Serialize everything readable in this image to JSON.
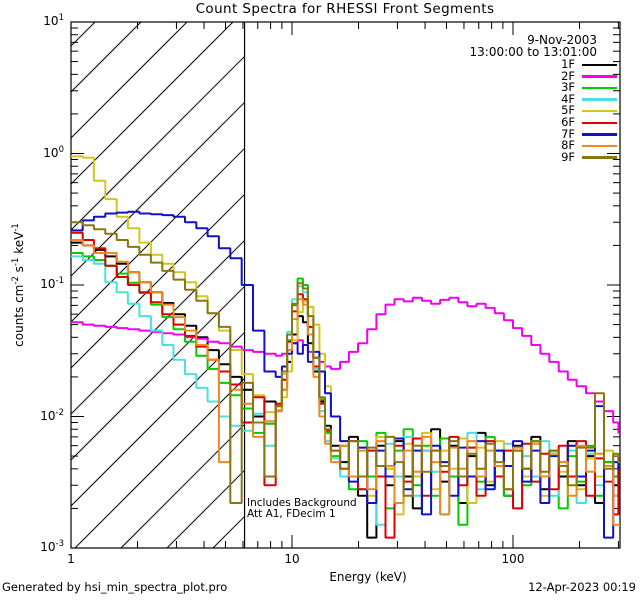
{
  "title": "Count Spectra for RHESSI Front Segments",
  "annotation": {
    "line1": "Includes Background",
    "line2": "Att A1, FDecim 1"
  },
  "footer": {
    "left": "Generated by hsi_min_spectra_plot.pro",
    "right": "12-Apr-2023 00:19"
  },
  "legend": {
    "date": "9-Nov-2003",
    "time_range": "13:00:00 to 13:01:00",
    "entries": [
      {
        "label": "1F",
        "color": "#000000"
      },
      {
        "label": "2F",
        "color": "#f000f0"
      },
      {
        "label": "3F",
        "color": "#00cc00"
      },
      {
        "label": "4F",
        "color": "#4ae0e0"
      },
      {
        "label": "5F",
        "color": "#d4c420"
      },
      {
        "label": "6F",
        "color": "#dd0000"
      },
      {
        "label": "7F",
        "color": "#1111cc"
      },
      {
        "label": "8F",
        "color": "#ee8822"
      },
      {
        "label": "9F",
        "color": "#887711"
      }
    ]
  },
  "axes": {
    "x": {
      "label": "Energy (keV)",
      "scale": "log",
      "ticks": [
        "1",
        "10",
        "100"
      ]
    },
    "y": {
      "scale": "log",
      "label_segments": [
        {
          "text": "counts cm",
          "sup": "-2"
        },
        {
          "text": " s",
          "sup": "-1"
        },
        {
          "text": " keV",
          "sup": "-1"
        }
      ],
      "ticks": [
        {
          "base": "10",
          "exp": "1"
        },
        {
          "base": "10",
          "exp": "0"
        },
        {
          "base": "10",
          "exp": "-1"
        },
        {
          "base": "10",
          "exp": "-2"
        },
        {
          "base": "10",
          "exp": "-3"
        }
      ]
    }
  },
  "chart_data": {
    "type": "line",
    "line_style": "histogram-step",
    "title": "Count Spectra for RHESSI Front Segments",
    "xlabel": "Energy (keV)",
    "ylabel": "counts cm^-2 s^-1 keV^-1",
    "x_scale": "log",
    "y_scale": "log",
    "xlim": [
      1,
      305
    ],
    "ylim": [
      0.001,
      10
    ],
    "grid": false,
    "legend_position": "top-right-inside",
    "hatched_region": {
      "from_keV": 1.0,
      "to_keV": 6.1
    },
    "attenuator_line_keV": 6.1,
    "energies": [
      1.0,
      1.13,
      1.27,
      1.43,
      1.61,
      1.81,
      2.04,
      2.3,
      2.59,
      2.91,
      3.28,
      3.69,
      4.15,
      4.67,
      5.26,
      5.92,
      6.66,
      7.5,
      8.44,
      9.0,
      9.5,
      10.0,
      10.6,
      11.2,
      11.8,
      12.5,
      13.3,
      14.1,
      15.0,
      16.5,
      18.1,
      19.9,
      21.9,
      24.1,
      26.5,
      29.1,
      32.0,
      35.2,
      38.7,
      42.6,
      46.8,
      51.5,
      56.6,
      62.2,
      68.4,
      75.2,
      82.7,
      91.0,
      100,
      110,
      121,
      133,
      146,
      161,
      177,
      194,
      214,
      235,
      258,
      284,
      300
    ],
    "series": [
      {
        "name": "1F",
        "color": "#000000",
        "values": [
          0.21,
          0.2,
          0.185,
          0.165,
          0.145,
          0.125,
          0.105,
          0.088,
          0.073,
          0.06,
          0.049,
          0.04,
          0.032,
          0.025,
          0.02,
          0.016,
          0.01,
          0.013,
          0.012,
          0.016,
          0.026,
          0.042,
          0.058,
          0.052,
          0.036,
          0.022,
          0.013,
          0.0085,
          0.006,
          0.0045,
          0.007,
          0.0025,
          0.0012,
          0.006,
          0.003,
          0.0065,
          0.0035,
          0.002,
          0.0055,
          0.008,
          0.0032,
          0.006,
          0.0022,
          0.005,
          0.0075,
          0.003,
          0.0055,
          0.0025,
          0.006,
          0.004,
          0.007,
          0.0028,
          0.0052,
          0.0035,
          0.0065,
          0.003,
          0.005,
          0.0022,
          0.0045,
          0.003,
          0.004
        ]
      },
      {
        "name": "2F",
        "color": "#f000f0",
        "values": [
          0.052,
          0.05,
          0.049,
          0.048,
          0.047,
          0.046,
          0.045,
          0.044,
          0.043,
          0.042,
          0.04,
          0.039,
          0.037,
          0.036,
          0.034,
          0.032,
          0.031,
          0.03,
          0.029,
          0.03,
          0.032,
          0.036,
          0.038,
          0.035,
          0.031,
          0.028,
          0.026,
          0.024,
          0.023,
          0.026,
          0.031,
          0.036,
          0.046,
          0.06,
          0.071,
          0.078,
          0.075,
          0.08,
          0.076,
          0.072,
          0.077,
          0.08,
          0.074,
          0.069,
          0.072,
          0.067,
          0.061,
          0.054,
          0.047,
          0.041,
          0.035,
          0.03,
          0.026,
          0.022,
          0.019,
          0.017,
          0.015,
          0.013,
          0.011,
          0.009,
          0.0075
        ]
      },
      {
        "name": "3F",
        "color": "#00cc00",
        "values": [
          0.175,
          0.165,
          0.155,
          0.14,
          0.122,
          0.104,
          0.087,
          0.071,
          0.057,
          0.046,
          0.037,
          0.029,
          0.023,
          0.018,
          0.0145,
          0.0115,
          0.0075,
          0.0088,
          0.011,
          0.019,
          0.038,
          0.07,
          0.112,
          0.1,
          0.058,
          0.028,
          0.0135,
          0.0075,
          0.005,
          0.006,
          0.0028,
          0.0065,
          0.0035,
          0.0075,
          0.002,
          0.0055,
          0.008,
          0.003,
          0.006,
          0.0025,
          0.0068,
          0.0035,
          0.0015,
          0.0058,
          0.0032,
          0.007,
          0.0042,
          0.0025,
          0.0055,
          0.003,
          0.0065,
          0.0035,
          0.0055,
          0.002,
          0.005,
          0.0032,
          0.006,
          0.0025,
          0.0045,
          0.0035,
          0.005
        ]
      },
      {
        "name": "4F",
        "color": "#4ae0e0",
        "values": [
          0.165,
          0.155,
          0.145,
          0.105,
          0.088,
          0.072,
          0.058,
          0.045,
          0.035,
          0.027,
          0.021,
          0.0165,
          0.013,
          0.01,
          0.0085,
          0.0078,
          0.0105,
          0.006,
          0.0125,
          0.021,
          0.044,
          0.078,
          0.098,
          0.088,
          0.048,
          0.023,
          0.011,
          0.0065,
          0.0048,
          0.0035,
          0.0065,
          0.0028,
          0.0055,
          0.0015,
          0.0062,
          0.0035,
          0.007,
          0.0025,
          0.0055,
          0.0038,
          0.0018,
          0.0065,
          0.004,
          0.0075,
          0.0028,
          0.0055,
          0.0035,
          0.0062,
          0.002,
          0.005,
          0.0035,
          0.0065,
          0.0025,
          0.0045,
          0.0055,
          0.0022,
          0.0052,
          0.003,
          0.0042,
          0.0025,
          0.0045
        ]
      },
      {
        "name": "5F",
        "color": "#d4c420",
        "values": [
          0.95,
          0.93,
          0.62,
          0.45,
          0.33,
          0.27,
          0.21,
          0.17,
          0.145,
          0.125,
          0.105,
          0.082,
          0.061,
          0.045,
          0.032,
          0.021,
          0.0145,
          0.0108,
          0.0112,
          0.014,
          0.022,
          0.038,
          0.062,
          0.075,
          0.068,
          0.05,
          0.03,
          0.017,
          0.01,
          0.0065,
          0.0035,
          0.0058,
          0.0025,
          0.007,
          0.004,
          0.0018,
          0.0062,
          0.0035,
          0.0075,
          0.0028,
          0.0055,
          0.004,
          0.0068,
          0.0022,
          0.0058,
          0.0032,
          0.0065,
          0.0028,
          0.0055,
          0.0035,
          0.0065,
          0.0025,
          0.0052,
          0.0038,
          0.006,
          0.0028,
          0.0048,
          0.0035,
          0.0055,
          0.0025,
          0.0045
        ]
      },
      {
        "name": "6F",
        "color": "#dd0000",
        "values": [
          0.25,
          0.22,
          0.19,
          0.14,
          0.115,
          0.1,
          0.088,
          0.074,
          0.06,
          0.05,
          0.041,
          0.034,
          0.027,
          0.022,
          0.0175,
          0.009,
          0.014,
          0.003,
          0.0125,
          0.019,
          0.037,
          0.063,
          0.085,
          0.078,
          0.048,
          0.024,
          0.0125,
          0.0078,
          0.0055,
          0.004,
          0.0065,
          0.0028,
          0.0055,
          0.0035,
          0.0012,
          0.006,
          0.0032,
          0.0068,
          0.0025,
          0.0055,
          0.0038,
          0.007,
          0.003,
          0.0058,
          0.0025,
          0.0065,
          0.0035,
          0.0055,
          0.002,
          0.0062,
          0.0032,
          0.0052,
          0.0028,
          0.006,
          0.0035,
          0.0065,
          0.0025,
          0.0048,
          0.0032,
          0.0018,
          0.0042
        ]
      },
      {
        "name": "7F",
        "color": "#1111cc",
        "values": [
          0.26,
          0.31,
          0.33,
          0.35,
          0.355,
          0.36,
          0.35,
          0.345,
          0.34,
          0.33,
          0.3,
          0.27,
          0.235,
          0.19,
          0.16,
          0.1,
          0.045,
          0.022,
          0.02,
          0.024,
          0.03,
          0.036,
          0.03,
          0.035,
          0.026,
          0.031,
          0.022,
          0.015,
          0.01,
          0.0065,
          0.0032,
          0.0058,
          0.0022,
          0.0055,
          0.0035,
          0.0068,
          0.0028,
          0.0055,
          0.0018,
          0.006,
          0.0045,
          0.0025,
          0.0058,
          0.0035,
          0.0065,
          0.0028,
          0.0055,
          0.0042,
          0.0065,
          0.0032,
          0.0055,
          0.0022,
          0.005,
          0.0042,
          0.006,
          0.0035,
          0.0055,
          0.012,
          0.0012,
          0.0045,
          0.004
        ]
      },
      {
        "name": "8F",
        "color": "#ee8822",
        "values": [
          0.22,
          0.2,
          0.175,
          0.175,
          0.15,
          0.125,
          0.105,
          0.088,
          0.071,
          0.057,
          0.045,
          0.035,
          0.027,
          0.0045,
          0.016,
          0.0125,
          0.007,
          0.0092,
          0.011,
          0.016,
          0.032,
          0.055,
          0.078,
          0.071,
          0.042,
          0.02,
          0.01,
          0.0062,
          0.0045,
          0.006,
          0.0035,
          0.0055,
          0.0028,
          0.0065,
          0.0042,
          0.0022,
          0.0055,
          0.0038,
          0.007,
          0.0045,
          0.0018,
          0.0058,
          0.004,
          0.0065,
          0.0035,
          0.0055,
          0.0042,
          0.0028,
          0.0058,
          0.004,
          0.0062,
          0.0035,
          0.0055,
          0.0045,
          0.0025,
          0.006,
          0.0038,
          0.0052,
          0.0042,
          0.0015,
          0.0015
        ]
      },
      {
        "name": "9F",
        "color": "#887711",
        "values": [
          0.3,
          0.285,
          0.265,
          0.245,
          0.22,
          0.195,
          0.17,
          0.148,
          0.128,
          0.11,
          0.092,
          0.076,
          0.061,
          0.048,
          0.0022,
          0.018,
          0.009,
          0.0035,
          0.012,
          0.022,
          0.042,
          0.072,
          0.103,
          0.094,
          0.058,
          0.028,
          0.014,
          0.008,
          0.0055,
          0.004,
          0.0065,
          0.0035,
          0.0058,
          0.0042,
          0.007,
          0.0045,
          0.0025,
          0.006,
          0.0038,
          0.0055,
          0.0042,
          0.0065,
          0.0035,
          0.0052,
          0.004,
          0.0062,
          0.0045,
          0.0028,
          0.0055,
          0.004,
          0.0065,
          0.0038,
          0.0055,
          0.0042,
          0.003,
          0.0058,
          0.0058,
          0.015,
          0.004,
          0.0052,
          0.0045
        ]
      }
    ]
  }
}
